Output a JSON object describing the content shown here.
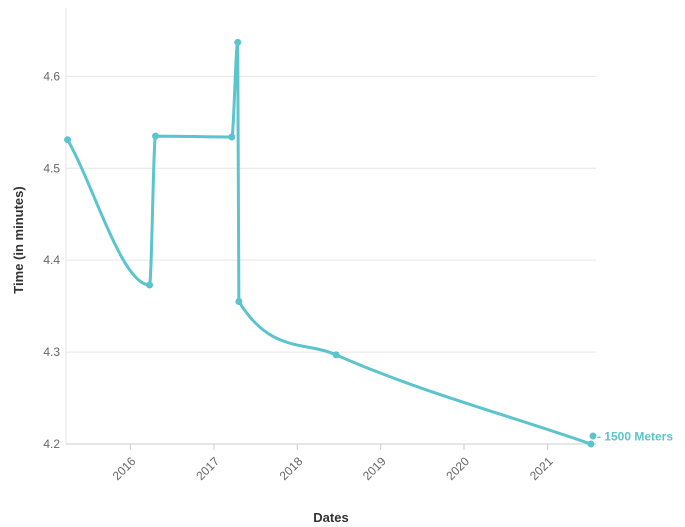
{
  "chart_data": {
    "type": "line",
    "xlabel": "Dates",
    "ylabel": "Time (in minutes)",
    "xlim": [
      "2015-03-25",
      "2021-08-01"
    ],
    "ylim": [
      4.2,
      4.67
    ],
    "y_ticks": [
      4.2,
      4.3,
      4.4,
      4.5,
      4.6
    ],
    "y_tick_labels": [
      "4.2",
      "4.3",
      "4.4",
      "4.5",
      "4.6"
    ],
    "x_ticks": [
      "2016-01-01",
      "2017-01-01",
      "2018-01-01",
      "2019-01-01",
      "2020-01-01",
      "2021-01-01"
    ],
    "x_tick_labels": [
      "2016",
      "2017",
      "2018",
      "2019",
      "2020",
      "2021"
    ],
    "grid": true,
    "series": [
      {
        "name": "- 1500 Meters",
        "color": "#5bc4cc",
        "points": [
          {
            "x": "2015-04-01",
            "y": 4.531
          },
          {
            "x": "2016-03-25",
            "y": 4.373
          },
          {
            "x": "2016-04-20",
            "y": 4.535
          },
          {
            "x": "2017-03-20",
            "y": 4.534
          },
          {
            "x": "2017-04-15",
            "y": 4.637
          },
          {
            "x": "2017-04-20",
            "y": 4.355
          },
          {
            "x": "2018-06-20",
            "y": 4.297
          },
          {
            "x": "2021-07-10",
            "y": 4.2
          }
        ]
      }
    ]
  }
}
